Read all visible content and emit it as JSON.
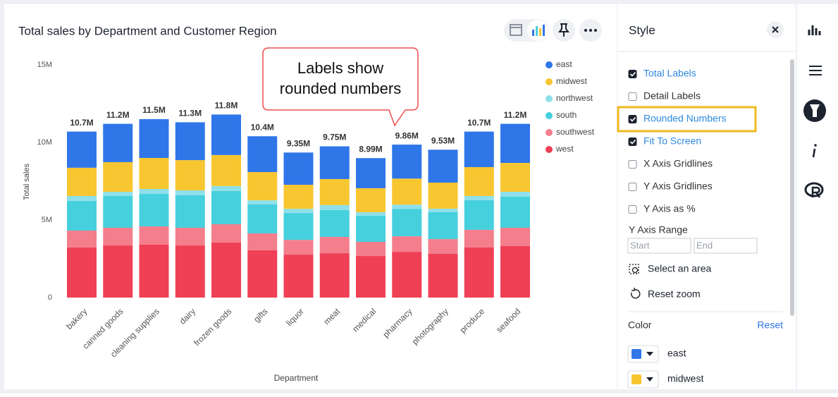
{
  "chart_data": {
    "type": "stacked_bar",
    "title": "Total sales by Department and Customer Region",
    "x_label": "Department",
    "y_label": "Total sales",
    "categories": [
      "bakery",
      "canned goods",
      "cleaning supplies",
      "dairy",
      "frozen goods",
      "gifts",
      "liquor",
      "meat",
      "medical",
      "pharmacy",
      "photography",
      "produce",
      "seafood"
    ],
    "series": [
      {
        "name": "east",
        "color": "#2f76e9",
        "values": [
          2330000,
          2470000,
          2500000,
          2440000,
          2610000,
          2310000,
          2080000,
          2110000,
          1940000,
          2190000,
          2120000,
          2290000,
          2520000
        ]
      },
      {
        "name": "midwest",
        "color": "#f8c630",
        "values": [
          1820000,
          1910000,
          2000000,
          1950000,
          2000000,
          1820000,
          1550000,
          1680000,
          1550000,
          1680000,
          1680000,
          1860000,
          1860000
        ]
      },
      {
        "name": "northwest",
        "color": "#8ee0ea",
        "values": [
          320000,
          270000,
          320000,
          320000,
          320000,
          270000,
          270000,
          320000,
          230000,
          270000,
          230000,
          270000,
          320000
        ]
      },
      {
        "name": "south",
        "color": "#46d0dd",
        "values": [
          1910000,
          2050000,
          2090000,
          2090000,
          2140000,
          1860000,
          1730000,
          1730000,
          1680000,
          1770000,
          1730000,
          1910000,
          2000000
        ]
      },
      {
        "name": "southwest",
        "color": "#f47e8c",
        "values": [
          1090000,
          1140000,
          1180000,
          1140000,
          1180000,
          1090000,
          950000,
          1050000,
          910000,
          1000000,
          950000,
          1140000,
          1180000
        ]
      },
      {
        "name": "west",
        "color": "#ef4056",
        "values": [
          3230000,
          3360000,
          3410000,
          3360000,
          3550000,
          3050000,
          2770000,
          2860000,
          2680000,
          2950000,
          2820000,
          3230000,
          3320000
        ]
      }
    ],
    "totals": [
      10700000,
      11200000,
      11500000,
      11300000,
      11800000,
      10400000,
      9350000,
      9750000,
      8990000,
      9860000,
      9530000,
      10700000,
      11200000
    ],
    "total_labels": [
      "10.7M",
      "11.2M",
      "11.5M",
      "11.3M",
      "11.8M",
      "10.4M",
      "9.35M",
      "9.75M",
      "8.99M",
      "9.86M",
      "9.53M",
      "10.7M",
      "11.2M"
    ],
    "ylim": [
      0,
      15000000
    ],
    "yticks": [
      0,
      {
        "value": 5000000,
        "label": "5M"
      },
      {
        "value": 10000000,
        "label": "10M"
      },
      {
        "value": 15000000,
        "label": "15M"
      }
    ],
    "grid": false,
    "legend": "right"
  },
  "callout": {
    "lines": [
      "Labels show",
      "rounded numbers"
    ]
  },
  "style_panel": {
    "title": "Style",
    "options": [
      {
        "label": "Total Labels",
        "checked": true
      },
      {
        "label": "Detail Labels",
        "checked": false
      },
      {
        "label": "Rounded Numbers",
        "checked": true
      },
      {
        "label": "Fit To Screen",
        "checked": true
      },
      {
        "label": "X Axis Gridlines",
        "checked": false
      },
      {
        "label": "Y Axis Gridlines",
        "checked": false
      },
      {
        "label": "Y Axis as %",
        "checked": false
      }
    ],
    "y_axis_range": {
      "label": "Y Axis Range",
      "start": "Start",
      "end": "End"
    },
    "actions": [
      "Select an area",
      "Reset zoom"
    ],
    "color": {
      "label": "Color",
      "reset": "Reset",
      "items": [
        "east",
        "midwest"
      ]
    }
  }
}
